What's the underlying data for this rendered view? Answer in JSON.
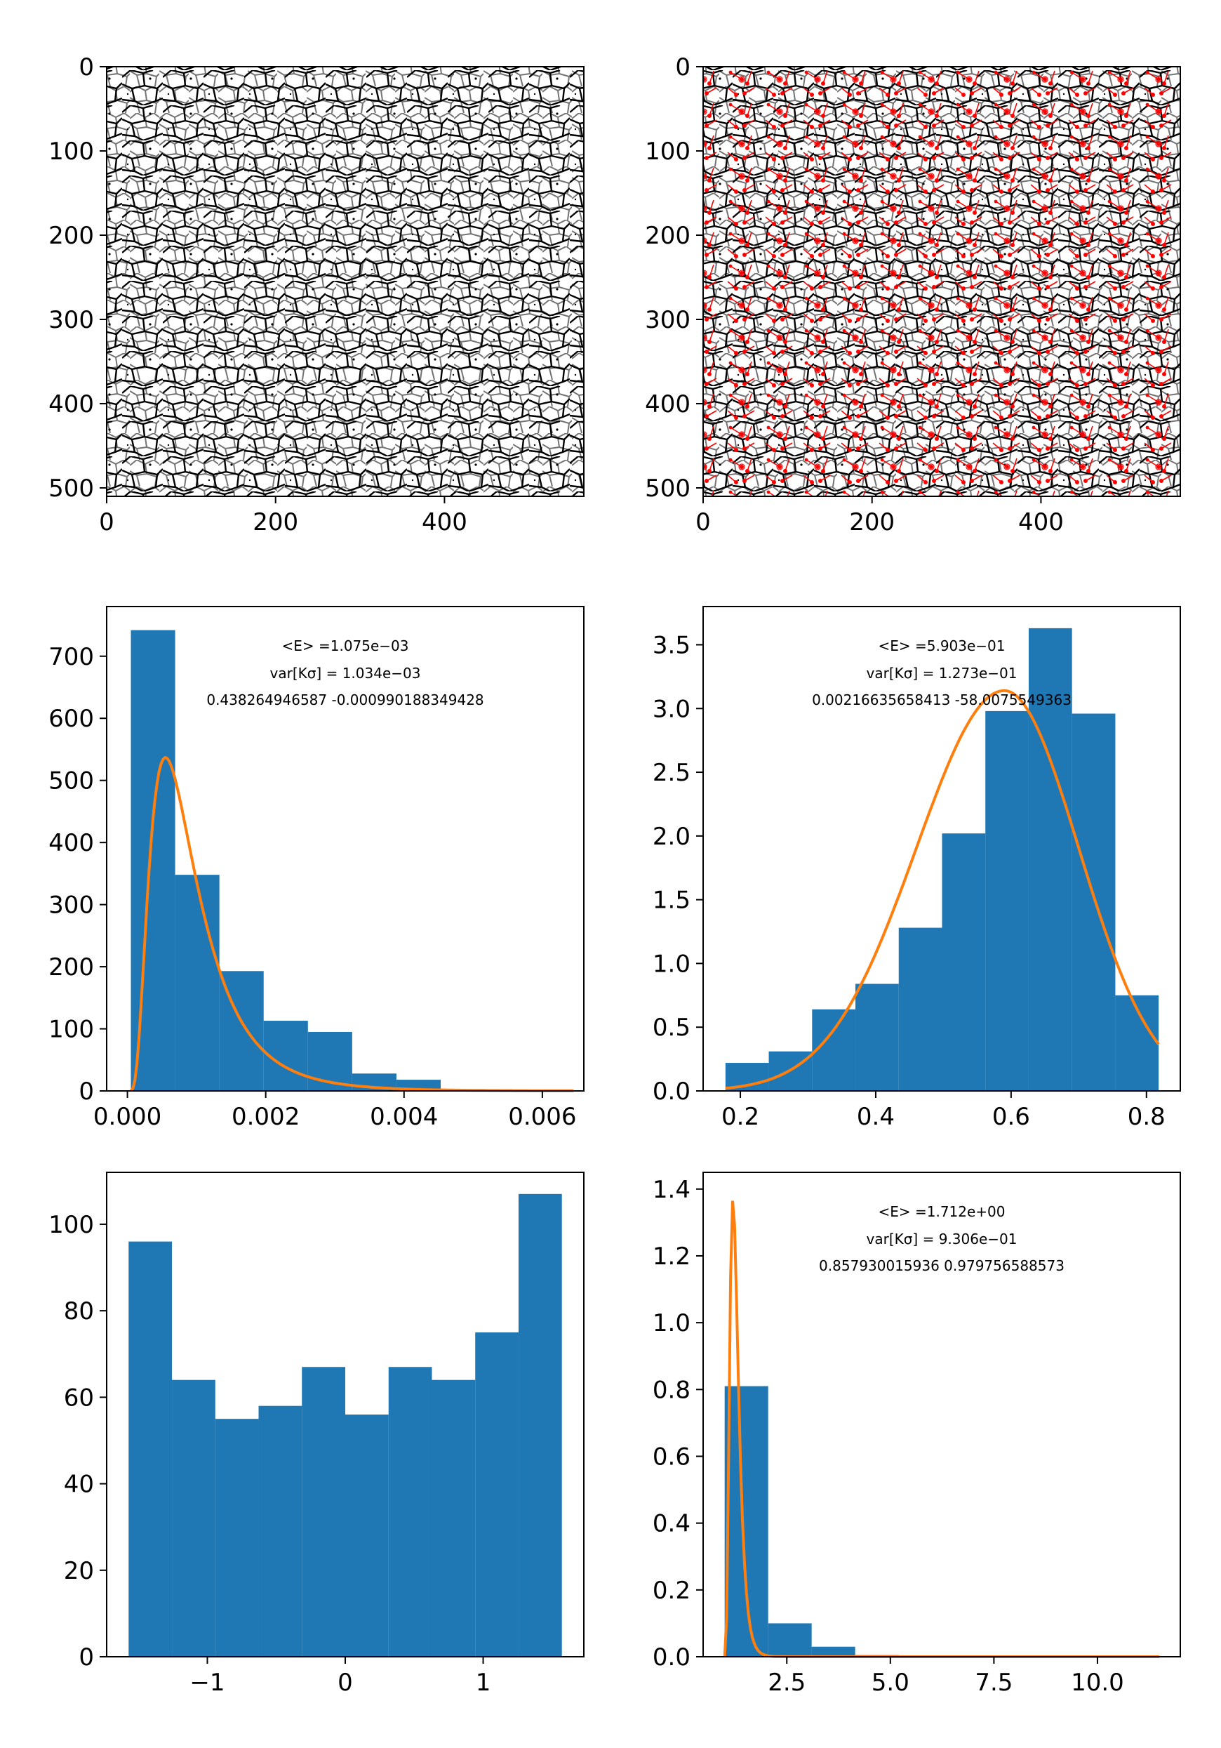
{
  "colors": {
    "bar": "#1f77b4",
    "fit": "#ff7f0e",
    "overlay": "#ff0000",
    "axes": "#000000"
  },
  "panels": [
    {
      "id": "p1",
      "type": "image",
      "description_key": "grain-boundary-binary",
      "x_ticks": [
        "0",
        "200",
        "400"
      ],
      "y_ticks": [
        "0",
        "100",
        "200",
        "300",
        "400",
        "500"
      ],
      "x_range": [
        0,
        565
      ],
      "y_range": [
        510,
        0
      ]
    },
    {
      "id": "p2",
      "type": "image",
      "description_key": "grain-boundary-with-vectors",
      "x_ticks": [
        "0",
        "200",
        "400"
      ],
      "y_ticks": [
        "0",
        "100",
        "200",
        "300",
        "400",
        "500"
      ],
      "x_range": [
        0,
        565
      ],
      "y_range": [
        510,
        0
      ]
    }
  ],
  "chart_data": [
    {
      "type": "bar",
      "panel": "p3",
      "bin_edges": [
        5e-05,
        0.00069,
        0.00133,
        0.00197,
        0.00261,
        0.00325,
        0.00389,
        0.00453,
        0.00517,
        0.00581,
        0.00645
      ],
      "values": [
        742,
        348,
        193,
        113,
        95,
        28,
        18,
        3,
        1,
        1
      ],
      "fit": {
        "mode": 0.00055,
        "peak": 537,
        "shape": "lognormal"
      },
      "xlim": [
        -0.0003,
        0.0066
      ],
      "ylim": [
        0,
        780
      ],
      "x_ticks": [
        0.0,
        0.002,
        0.004,
        0.006
      ],
      "x_tick_labels": [
        "0.000",
        "0.002",
        "0.004",
        "0.006"
      ],
      "y_ticks": [
        0,
        100,
        200,
        300,
        400,
        500,
        600,
        700
      ],
      "y_tick_labels": [
        "0",
        "100",
        "200",
        "300",
        "400",
        "500",
        "600",
        "700"
      ],
      "annotations": {
        "mean_prefix": "<E> =1.075e−03",
        "var_line": "var[Kσ] = 1.034e−03",
        "params": "0.438264946587 -0.000990188349428"
      }
    },
    {
      "type": "bar",
      "panel": "p4",
      "bin_edges": [
        0.178,
        0.242,
        0.306,
        0.37,
        0.434,
        0.498,
        0.562,
        0.626,
        0.69,
        0.754,
        0.818
      ],
      "values": [
        0.22,
        0.31,
        0.64,
        0.84,
        1.28,
        2.02,
        2.98,
        3.63,
        2.96,
        0.75
      ],
      "fit": {
        "mode": 0.59,
        "peak": 3.14,
        "shape": "skew"
      },
      "xlim": [
        0.145,
        0.85
      ],
      "ylim": [
        0,
        3.8
      ],
      "x_ticks": [
        0.2,
        0.4,
        0.6,
        0.8
      ],
      "x_tick_labels": [
        "0.2",
        "0.4",
        "0.6",
        "0.8"
      ],
      "y_ticks": [
        0,
        0.5,
        1.0,
        1.5,
        2.0,
        2.5,
        3.0,
        3.5
      ],
      "y_tick_labels": [
        "0.0",
        "0.5",
        "1.0",
        "1.5",
        "2.0",
        "2.5",
        "3.0",
        "3.5"
      ],
      "annotations": {
        "mean_prefix": "<E> =5.903e−01",
        "var_line": "var[Kσ] = 1.273e−01",
        "params": "0.00216635658413 -58.0075549363"
      }
    },
    {
      "type": "bar",
      "panel": "p5",
      "bin_edges": [
        -1.5708,
        -1.2566,
        -0.9425,
        -0.6283,
        -0.3142,
        0.0,
        0.3142,
        0.6283,
        0.9425,
        1.2566,
        1.5708
      ],
      "values": [
        96,
        64,
        55,
        58,
        67,
        56,
        67,
        64,
        75,
        107
      ],
      "xlim": [
        -1.73,
        1.73
      ],
      "ylim": [
        0,
        112
      ],
      "x_ticks": [
        -1,
        0,
        1
      ],
      "x_tick_labels": [
        "−1",
        "0",
        "1"
      ],
      "y_ticks": [
        0,
        20,
        40,
        60,
        80,
        100
      ],
      "y_tick_labels": [
        "0",
        "20",
        "40",
        "60",
        "80",
        "100"
      ]
    },
    {
      "type": "bar",
      "panel": "p6",
      "bin_edges": [
        1.0,
        2.05,
        3.1,
        4.15,
        5.2,
        6.25,
        7.3,
        8.35,
        9.4,
        10.45,
        11.5
      ],
      "values": [
        0.81,
        0.1,
        0.03,
        0.005,
        0.002,
        0.001,
        0.0,
        0.0,
        0.0,
        0.0
      ],
      "fit": {
        "mode": 1.2,
        "peak": 1.37,
        "shape": "heavy"
      },
      "xlim": [
        0.48,
        12.0
      ],
      "ylim": [
        0,
        1.45
      ],
      "x_ticks": [
        2.5,
        5.0,
        7.5,
        10.0
      ],
      "x_tick_labels": [
        "2.5",
        "5.0",
        "7.5",
        "10.0"
      ],
      "y_ticks": [
        0,
        0.2,
        0.4,
        0.6,
        0.8,
        1.0,
        1.2,
        1.4
      ],
      "y_tick_labels": [
        "0.0",
        "0.2",
        "0.4",
        "0.6",
        "0.8",
        "1.0",
        "1.2",
        "1.4"
      ],
      "annotations": {
        "mean_prefix": "<E> =1.712e+00",
        "var_line": "var[Kσ] = 9.306e−01",
        "params": "0.857930015936 0.979756588573"
      }
    }
  ]
}
